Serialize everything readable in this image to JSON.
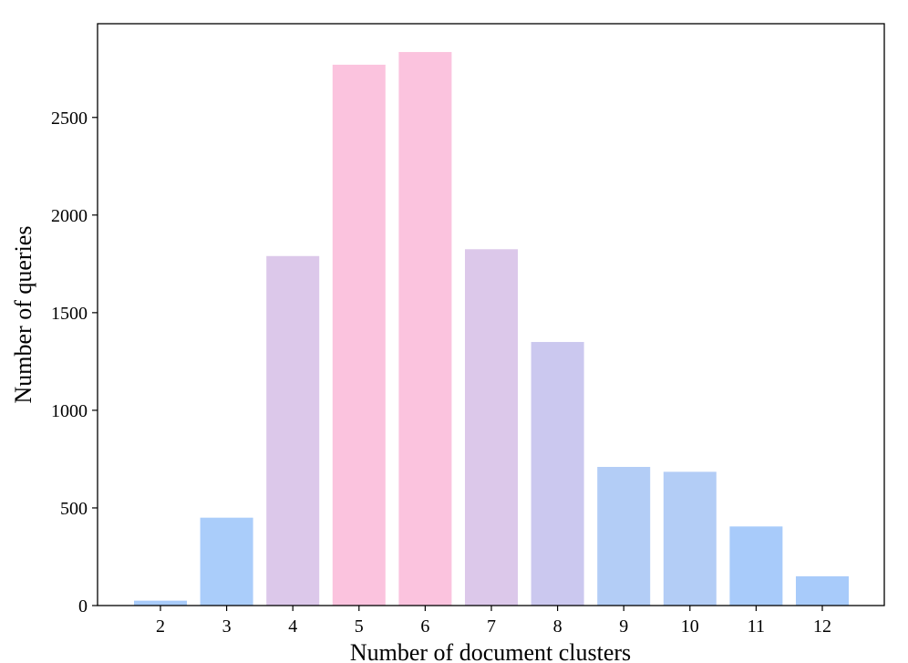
{
  "chart_data": {
    "type": "bar",
    "title": "",
    "xlabel": "Number of document clusters",
    "ylabel": "Number of queries",
    "categories": [
      "2",
      "3",
      "4",
      "5",
      "6",
      "7",
      "8",
      "9",
      "10",
      "11",
      "12"
    ],
    "values": [
      25,
      450,
      1790,
      2770,
      2835,
      1825,
      1350,
      710,
      685,
      405,
      150
    ],
    "bar_colors": [
      "#a8cbfa",
      "#aacdfa",
      "#dcc8ea",
      "#fbc3de",
      "#fbc3de",
      "#dcc8ea",
      "#cbc8ef",
      "#b3cdf6",
      "#b3cdf6",
      "#a8cbfa",
      "#a8cbfa"
    ],
    "ylim": [
      0,
      2980
    ],
    "yticks": [
      0,
      500,
      1000,
      1500,
      2000,
      2500
    ],
    "grid": false,
    "legend": "none"
  }
}
